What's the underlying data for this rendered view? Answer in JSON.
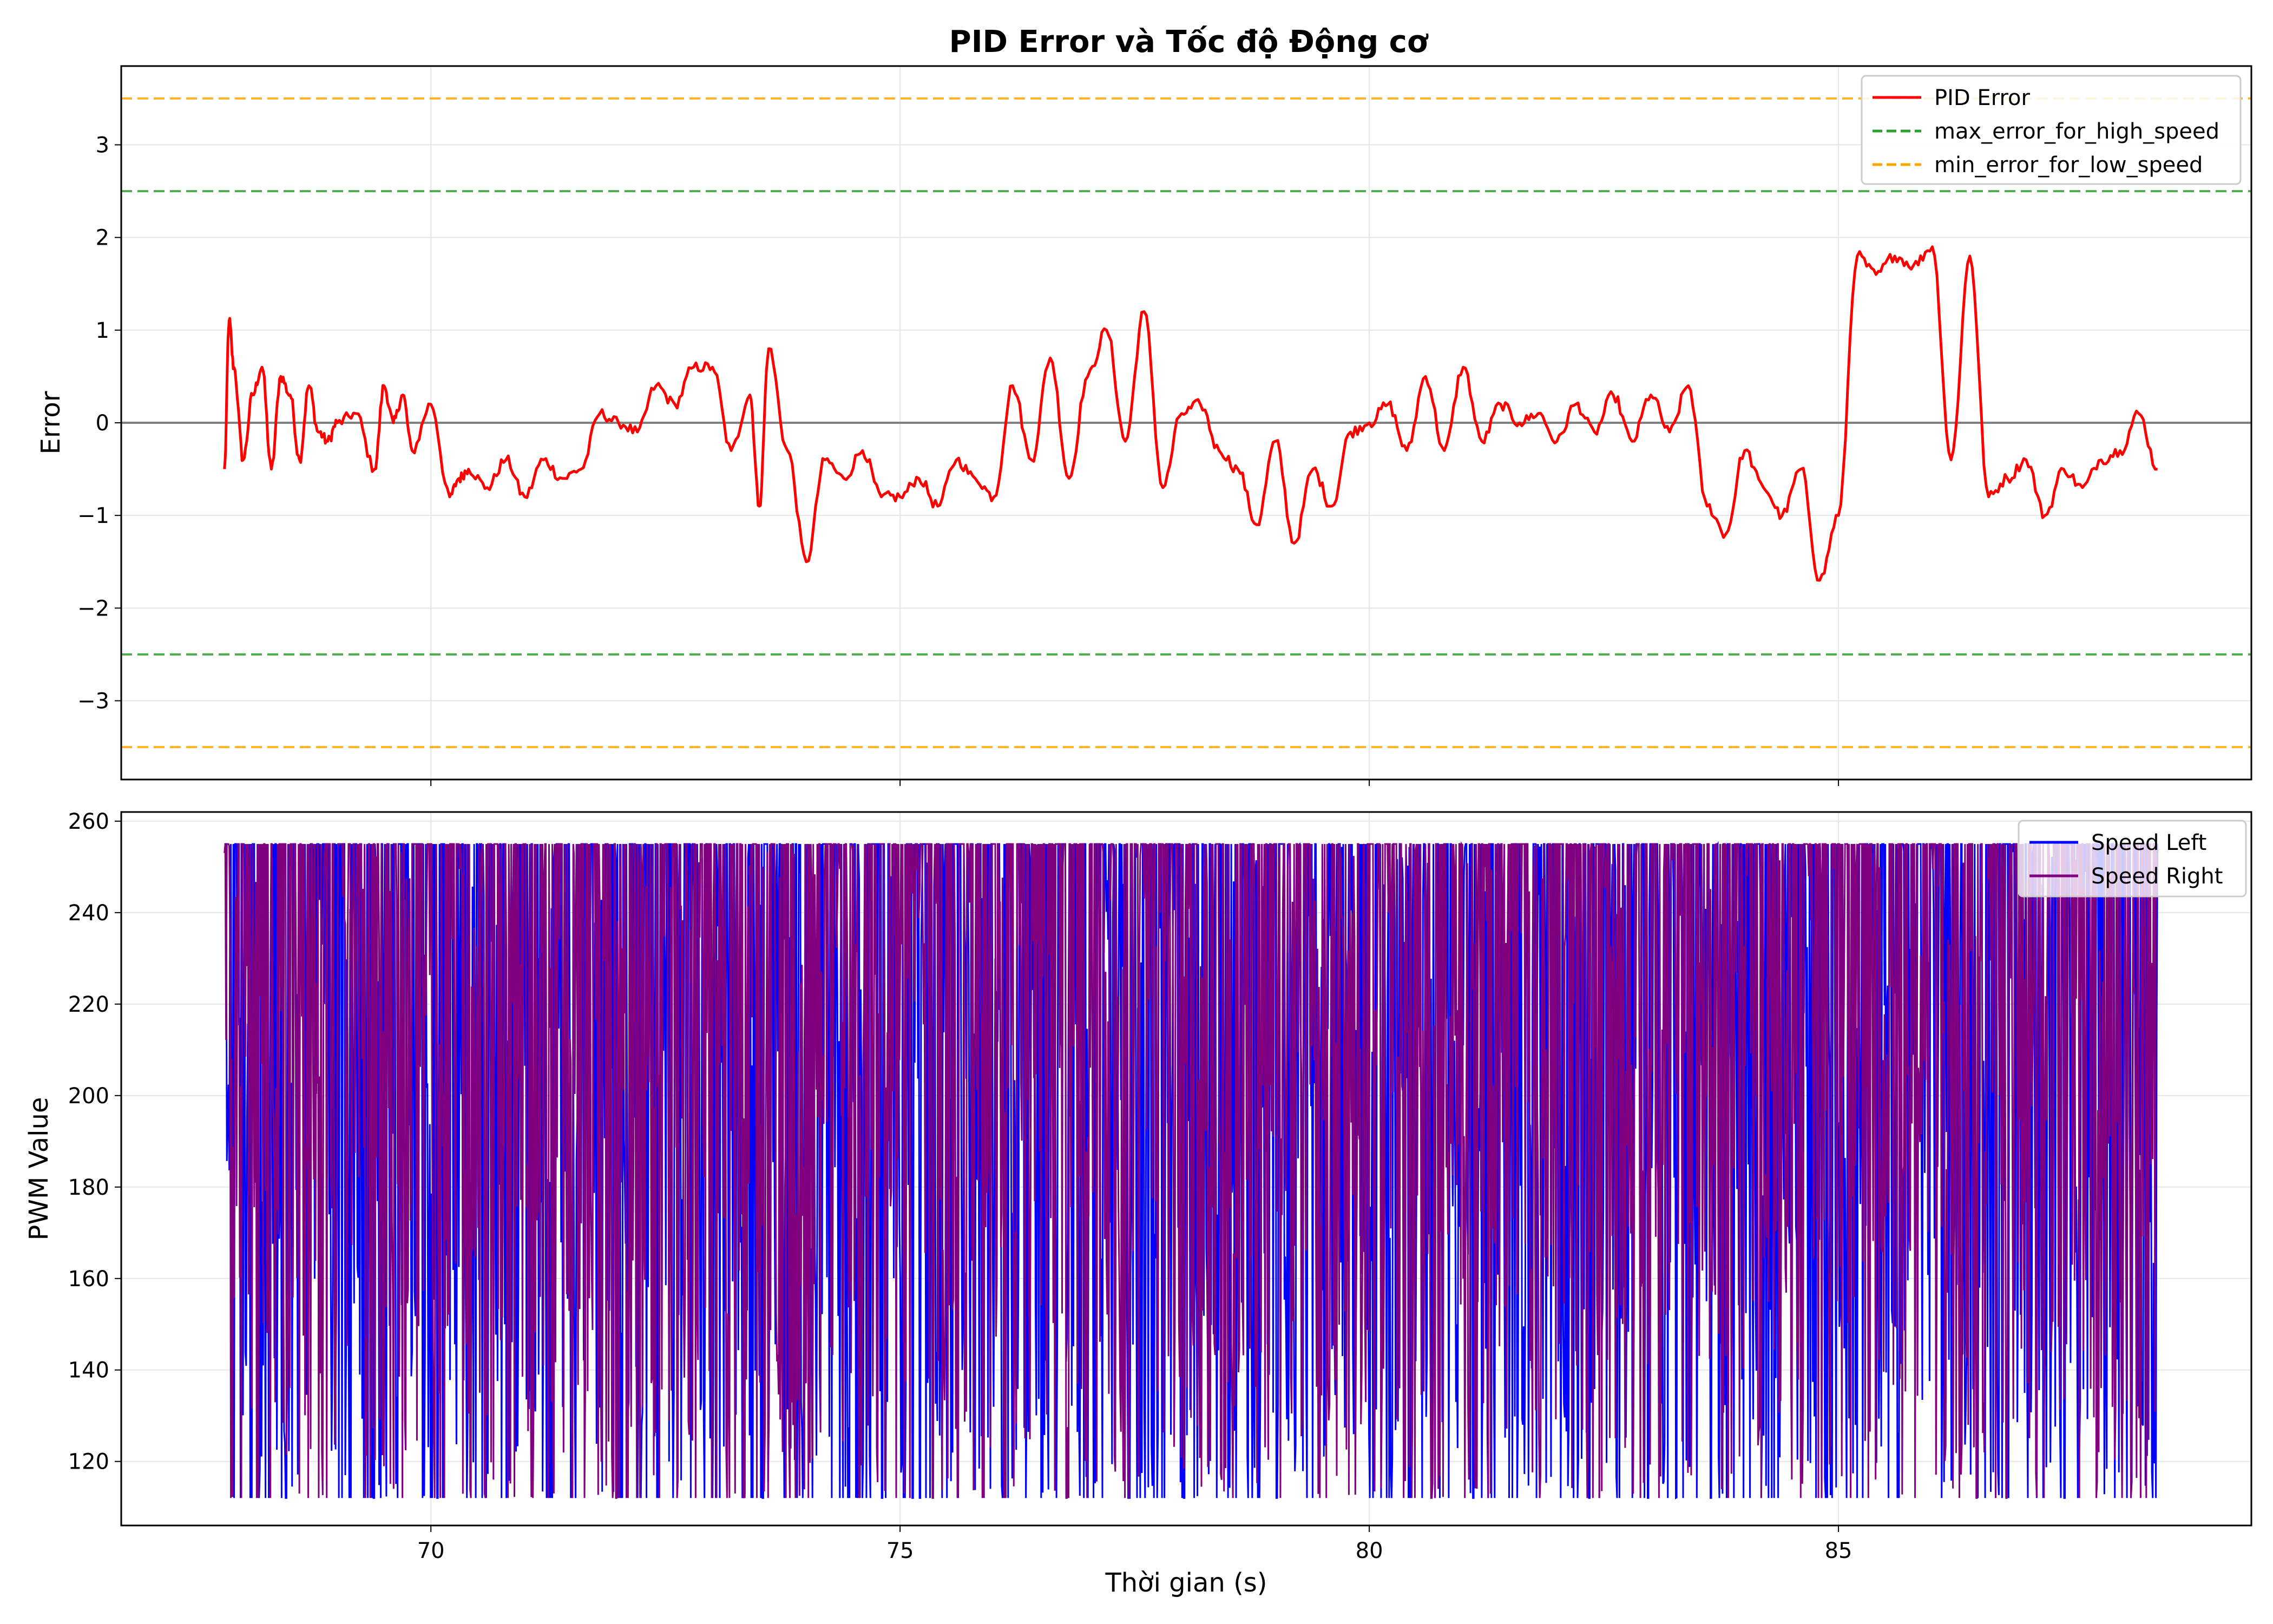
{
  "chart_data": [
    {
      "type": "line",
      "title": "PID Error và Tốc độ Động cơ",
      "xlabel": "",
      "ylabel": "Error",
      "xlim": [
        66.7,
        89.4
      ],
      "ylim": [
        -3.85,
        3.85
      ],
      "yticks": [
        -3,
        -2,
        -1,
        0,
        1,
        2,
        3
      ],
      "yticklabels": [
        "−3",
        "−2",
        "−1",
        "0",
        "1",
        "2",
        "3"
      ],
      "xticks": [
        70,
        75,
        80,
        85
      ],
      "grid": true,
      "legend": "top-right",
      "zero_line": {
        "y": 0,
        "color": "#808080"
      },
      "hlines": [
        {
          "name": "max_error_for_high_speed",
          "values": [
            2.5,
            -2.5
          ],
          "color": "#2ca02c",
          "dash": true
        },
        {
          "name": "min_error_for_low_speed",
          "values": [
            3.5,
            -3.5
          ],
          "color": "#ffa500",
          "dash": true
        }
      ],
      "series": [
        {
          "name": "PID Error",
          "color": "#ff0000",
          "x": [
            67.8,
            67.85,
            67.9,
            68.0,
            68.1,
            68.2,
            68.3,
            68.4,
            68.5,
            68.6,
            68.7,
            68.8,
            68.9,
            69.0,
            69.2,
            69.4,
            69.5,
            69.6,
            69.7,
            69.8,
            70.0,
            70.2,
            70.3,
            70.4,
            70.6,
            70.8,
            71.0,
            71.2,
            71.4,
            71.6,
            71.8,
            72.0,
            72.2,
            72.4,
            72.6,
            72.8,
            73.0,
            73.2,
            73.4,
            73.5,
            73.6,
            73.8,
            74.0,
            74.2,
            74.4,
            74.6,
            74.8,
            75.0,
            75.2,
            75.4,
            75.6,
            75.8,
            76.0,
            76.2,
            76.4,
            76.6,
            76.8,
            77.0,
            77.2,
            77.4,
            77.6,
            77.8,
            78.0,
            78.2,
            78.4,
            78.6,
            78.8,
            79.0,
            79.2,
            79.4,
            79.6,
            79.8,
            80.0,
            80.2,
            80.4,
            80.6,
            80.8,
            81.0,
            81.2,
            81.4,
            81.6,
            81.8,
            82.0,
            82.2,
            82.4,
            82.6,
            82.8,
            83.0,
            83.2,
            83.4,
            83.6,
            83.8,
            84.0,
            84.2,
            84.4,
            84.6,
            84.8,
            85.0,
            85.2,
            85.4,
            85.6,
            85.8,
            86.0,
            86.2,
            86.4,
            86.6,
            86.8,
            87.0,
            87.2,
            87.4,
            87.6,
            87.8,
            88.0,
            88.2,
            88.4
          ],
          "y": [
            -0.5,
            1.1,
            0.6,
            -0.4,
            0.3,
            0.6,
            -0.5,
            0.5,
            0.3,
            -0.4,
            0.4,
            -0.1,
            -0.2,
            0.0,
            0.1,
            -0.5,
            0.4,
            0.0,
            0.3,
            -0.3,
            0.2,
            -0.8,
            -0.6,
            -0.5,
            -0.7,
            -0.4,
            -0.8,
            -0.4,
            -0.6,
            -0.5,
            0.1,
            0.0,
            -0.1,
            0.4,
            0.2,
            0.6,
            0.6,
            -0.3,
            0.3,
            -0.9,
            0.8,
            -0.3,
            -1.5,
            -0.4,
            -0.6,
            -0.3,
            -0.8,
            -0.8,
            -0.6,
            -0.9,
            -0.4,
            -0.6,
            -0.8,
            0.4,
            -0.4,
            0.7,
            -0.6,
            0.5,
            1.0,
            -0.2,
            1.2,
            -0.7,
            0.1,
            0.2,
            -0.3,
            -0.5,
            -1.1,
            -0.2,
            -1.3,
            -0.5,
            -0.9,
            -0.1,
            0.0,
            0.2,
            -0.3,
            0.5,
            -0.3,
            0.6,
            -0.2,
            0.2,
            0.0,
            0.1,
            -0.2,
            0.2,
            -0.1,
            0.3,
            -0.2,
            0.3,
            -0.1,
            0.4,
            -0.9,
            -1.2,
            -0.3,
            -0.7,
            -1.0,
            -0.5,
            -1.7,
            -1.0,
            1.8,
            1.6,
            1.8,
            1.7,
            1.9,
            -0.4,
            1.8,
            -0.8,
            -0.6,
            -0.4,
            -1.0,
            -0.5,
            -0.7,
            -0.4,
            -0.3,
            0.1,
            -0.5
          ]
        }
      ]
    },
    {
      "type": "line",
      "title": "",
      "xlabel": "Thời gian (s)",
      "ylabel": "PWM Value",
      "xlim": [
        66.7,
        89.4
      ],
      "ylim": [
        106,
        262
      ],
      "yticks": [
        120,
        140,
        160,
        180,
        200,
        220,
        240,
        260
      ],
      "xticks": [
        70,
        75,
        80,
        85
      ],
      "xticklabels": [
        "70",
        "75",
        "80",
        "85"
      ],
      "grid": true,
      "legend": "top-right",
      "series": [
        {
          "name": "Speed Left",
          "color": "#0000ff"
        },
        {
          "name": "Speed Right",
          "color": "#800080"
        }
      ]
    }
  ]
}
